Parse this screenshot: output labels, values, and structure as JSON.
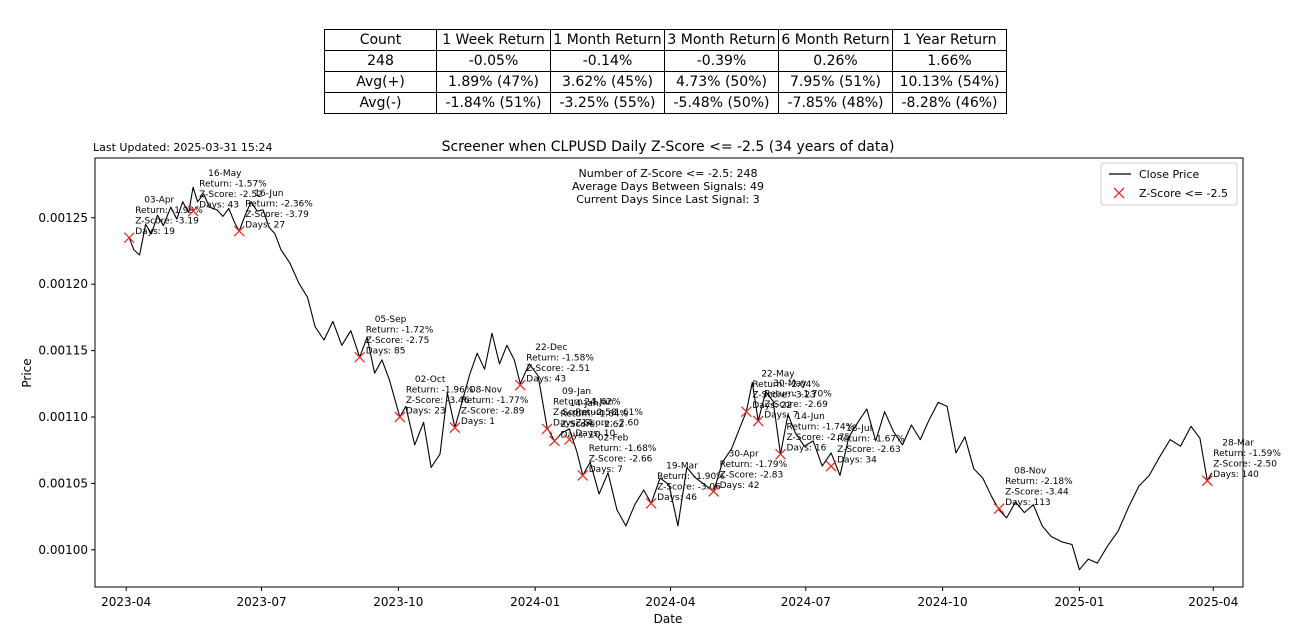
{
  "last_updated": "Last Updated: 2025-03-31 15:24",
  "table": {
    "headers": [
      "Count",
      "1 Week Return",
      "1 Month Return",
      "3 Month Return",
      "6 Month Return",
      "1 Year Return"
    ],
    "rows": [
      [
        "248",
        "-0.05%",
        "-0.14%",
        "-0.39%",
        "0.26%",
        "1.66%"
      ],
      [
        "Avg(+)",
        "1.89% (47%)",
        "3.62% (45%)",
        "4.73% (50%)",
        "7.95% (51%)",
        "10.13% (54%)"
      ],
      [
        "Avg(-)",
        "-1.84% (51%)",
        "-3.25% (55%)",
        "-5.48% (50%)",
        "-7.85% (48%)",
        "-8.28% (46%)"
      ]
    ]
  },
  "chart_data": {
    "type": "line",
    "title": "Screener when CLPUSD Daily Z-Score <= -2.5 (34 years of data)",
    "xlabel": "Date",
    "ylabel": "Price",
    "xlim": [
      "2023-03-11",
      "2025-04-21"
    ],
    "ylim": [
      0.000972,
      0.001295
    ],
    "x_ticks": [
      "2023-04",
      "2023-07",
      "2023-10",
      "2024-01",
      "2024-04",
      "2024-07",
      "2024-10",
      "2025-01",
      "2025-04"
    ],
    "x_tick_dates": [
      "2023-04-01",
      "2023-07-01",
      "2023-10-01",
      "2024-01-01",
      "2024-04-01",
      "2024-07-01",
      "2024-10-01",
      "2025-01-01",
      "2025-04-01"
    ],
    "y_ticks": [
      "0.00100",
      "0.00105",
      "0.00110",
      "0.00115",
      "0.00120",
      "0.00125"
    ],
    "y_tick_values": [
      0.001,
      0.00105,
      0.0011,
      0.00115,
      0.0012,
      0.00125
    ],
    "legend_position": "top-right",
    "legend": [
      {
        "label": "Close Price",
        "color": "#000000",
        "marker": "line"
      },
      {
        "label": "Z-Score <= -2.5",
        "color": "#e8302a",
        "marker": "x"
      }
    ],
    "info_lines": [
      "Number of Z-Score <= -2.5: 248",
      "Average Days Between Signals: 49",
      "Current Days Since Last Signal: 3"
    ],
    "series": [
      {
        "name": "Close Price",
        "color": "#000000",
        "points": [
          [
            "2023-04-03",
            0.001235
          ],
          [
            "2023-04-06",
            0.001226
          ],
          [
            "2023-04-10",
            0.001222
          ],
          [
            "2023-04-14",
            0.001245
          ],
          [
            "2023-04-18",
            0.001238
          ],
          [
            "2023-04-22",
            0.001252
          ],
          [
            "2023-04-26",
            0.001244
          ],
          [
            "2023-05-01",
            0.001258
          ],
          [
            "2023-05-05",
            0.001249
          ],
          [
            "2023-05-09",
            0.001262
          ],
          [
            "2023-05-13",
            0.001254
          ],
          [
            "2023-05-16",
            0.001273
          ],
          [
            "2023-05-19",
            0.001262
          ],
          [
            "2023-05-23",
            0.001268
          ],
          [
            "2023-05-27",
            0.001258
          ],
          [
            "2023-06-01",
            0.001256
          ],
          [
            "2023-06-05",
            0.001251
          ],
          [
            "2023-06-09",
            0.001257
          ],
          [
            "2023-06-13",
            0.001246
          ],
          [
            "2023-06-16",
            0.00124
          ],
          [
            "2023-06-20",
            0.001252
          ],
          [
            "2023-06-24",
            0.001262
          ],
          [
            "2023-06-28",
            0.001255
          ],
          [
            "2023-07-02",
            0.001256
          ],
          [
            "2023-07-06",
            0.001243
          ],
          [
            "2023-07-10",
            0.001238
          ],
          [
            "2023-07-14",
            0.001226
          ],
          [
            "2023-07-20",
            0.001216
          ],
          [
            "2023-07-26",
            0.001201
          ],
          [
            "2023-08-01",
            0.00119
          ],
          [
            "2023-08-06",
            0.001168
          ],
          [
            "2023-08-12",
            0.001158
          ],
          [
            "2023-08-18",
            0.001172
          ],
          [
            "2023-08-24",
            0.001154
          ],
          [
            "2023-08-30",
            0.001165
          ],
          [
            "2023-09-05",
            0.001145
          ],
          [
            "2023-09-10",
            0.00116
          ],
          [
            "2023-09-15",
            0.001133
          ],
          [
            "2023-09-20",
            0.001143
          ],
          [
            "2023-09-25",
            0.001128
          ],
          [
            "2023-10-02",
            0.0011
          ],
          [
            "2023-10-06",
            0.001108
          ],
          [
            "2023-10-12",
            0.001079
          ],
          [
            "2023-10-18",
            0.001096
          ],
          [
            "2023-10-23",
            0.001062
          ],
          [
            "2023-10-29",
            0.001072
          ],
          [
            "2023-11-03",
            0.001118
          ],
          [
            "2023-11-08",
            0.001092
          ],
          [
            "2023-11-13",
            0.001112
          ],
          [
            "2023-11-18",
            0.001132
          ],
          [
            "2023-11-23",
            0.001148
          ],
          [
            "2023-11-28",
            0.001136
          ],
          [
            "2023-12-03",
            0.001163
          ],
          [
            "2023-12-08",
            0.00114
          ],
          [
            "2023-12-13",
            0.001154
          ],
          [
            "2023-12-18",
            0.001143
          ],
          [
            "2023-12-22",
            0.001125
          ],
          [
            "2023-12-28",
            0.00114
          ],
          [
            "2024-01-03",
            0.001131
          ],
          [
            "2024-01-09",
            0.001092
          ],
          [
            "2024-01-14",
            0.001082
          ],
          [
            "2024-01-19",
            0.001088
          ],
          [
            "2024-01-24",
            0.001091
          ],
          [
            "2024-01-29",
            0.001074
          ],
          [
            "2024-02-02",
            0.001056
          ],
          [
            "2024-02-07",
            0.001066
          ],
          [
            "2024-02-13",
            0.001042
          ],
          [
            "2024-02-19",
            0.001058
          ],
          [
            "2024-02-25",
            0.00103
          ],
          [
            "2024-03-02",
            0.001018
          ],
          [
            "2024-03-08",
            0.001034
          ],
          [
            "2024-03-14",
            0.001045
          ],
          [
            "2024-03-19",
            0.001035
          ],
          [
            "2024-03-25",
            0.001054
          ],
          [
            "2024-03-31",
            0.001049
          ],
          [
            "2024-04-06",
            0.001018
          ],
          [
            "2024-04-12",
            0.001062
          ],
          [
            "2024-04-18",
            0.001054
          ],
          [
            "2024-04-24",
            0.001049
          ],
          [
            "2024-04-30",
            0.001044
          ],
          [
            "2024-05-06",
            0.001066
          ],
          [
            "2024-05-12",
            0.001076
          ],
          [
            "2024-05-18",
            0.001093
          ],
          [
            "2024-05-22",
            0.001104
          ],
          [
            "2024-05-26",
            0.001126
          ],
          [
            "2024-05-30",
            0.001097
          ],
          [
            "2024-06-04",
            0.001119
          ],
          [
            "2024-06-09",
            0.001112
          ],
          [
            "2024-06-14",
            0.001072
          ],
          [
            "2024-06-19",
            0.001102
          ],
          [
            "2024-06-24",
            0.001088
          ],
          [
            "2024-06-30",
            0.001078
          ],
          [
            "2024-07-06",
            0.001082
          ],
          [
            "2024-07-12",
            0.001063
          ],
          [
            "2024-07-18",
            0.001073
          ],
          [
            "2024-07-24",
            0.001056
          ],
          [
            "2024-07-30",
            0.001085
          ],
          [
            "2024-08-05",
            0.001096
          ],
          [
            "2024-08-11",
            0.001106
          ],
          [
            "2024-08-17",
            0.001082
          ],
          [
            "2024-08-23",
            0.001104
          ],
          [
            "2024-08-29",
            0.001089
          ],
          [
            "2024-09-04",
            0.001079
          ],
          [
            "2024-09-10",
            0.001094
          ],
          [
            "2024-09-16",
            0.001083
          ],
          [
            "2024-09-22",
            0.001098
          ],
          [
            "2024-09-28",
            0.001111
          ],
          [
            "2024-10-04",
            0.001108
          ],
          [
            "2024-10-10",
            0.001073
          ],
          [
            "2024-10-16",
            0.001085
          ],
          [
            "2024-10-22",
            0.001061
          ],
          [
            "2024-10-28",
            0.001054
          ],
          [
            "2024-11-03",
            0.00104
          ],
          [
            "2024-11-08",
            0.00103
          ],
          [
            "2024-11-13",
            0.001024
          ],
          [
            "2024-11-19",
            0.001036
          ],
          [
            "2024-11-25",
            0.001028
          ],
          [
            "2024-12-01",
            0.001034
          ],
          [
            "2024-12-07",
            0.001018
          ],
          [
            "2024-12-13",
            0.00101
          ],
          [
            "2024-12-20",
            0.001006
          ],
          [
            "2024-12-27",
            0.001004
          ],
          [
            "2025-01-01",
            0.000985
          ],
          [
            "2025-01-07",
            0.000993
          ],
          [
            "2025-01-13",
            0.00099
          ],
          [
            "2025-01-20",
            0.001003
          ],
          [
            "2025-01-27",
            0.001014
          ],
          [
            "2025-02-03",
            0.001032
          ],
          [
            "2025-02-10",
            0.001048
          ],
          [
            "2025-02-17",
            0.001056
          ],
          [
            "2025-02-24",
            0.00107
          ],
          [
            "2025-03-03",
            0.001083
          ],
          [
            "2025-03-10",
            0.001078
          ],
          [
            "2025-03-17",
            0.001093
          ],
          [
            "2025-03-23",
            0.001084
          ],
          [
            "2025-03-28",
            0.001052
          ],
          [
            "2025-03-31",
            0.001058
          ]
        ]
      }
    ],
    "signals": [
      {
        "date": "2023-04-03",
        "price": 0.001235,
        "lines": [
          "03-Apr",
          "Return: -1.99%",
          "Z-Score: -3.19",
          "Days: 19"
        ]
      },
      {
        "date": "2023-05-16",
        "price": 0.001255,
        "lines": [
          "16-May",
          "Return: -1.57%",
          "Z-Score: -2.52",
          "Days: 43"
        ]
      },
      {
        "date": "2023-06-16",
        "price": 0.00124,
        "lines": [
          "16-Jun",
          "Return: -2.36%",
          "Z-Score: -3.79",
          "Days: 27"
        ]
      },
      {
        "date": "2023-09-05",
        "price": 0.001145,
        "lines": [
          "05-Sep",
          "Return: -1.72%",
          "Z-Score: -2.75",
          "Days: 85"
        ]
      },
      {
        "date": "2023-10-02",
        "price": 0.0011,
        "lines": [
          "02-Oct",
          "Return: -1.96%",
          "Z-Score: -3.46",
          "Days: 23"
        ]
      },
      {
        "date": "2023-11-08",
        "price": 0.001092,
        "lines": [
          "08-Nov",
          "Return: -1.77%",
          "Z-Score: -2.89",
          "Days: 1"
        ]
      },
      {
        "date": "2023-12-22",
        "price": 0.001124,
        "lines": [
          "22-Dec",
          "Return: -1.58%",
          "Z-Score: -2.51",
          "Days: 43"
        ]
      },
      {
        "date": "2024-01-09",
        "price": 0.001091,
        "lines": [
          "09-Jan",
          "Return: -1.62%",
          "Z-Score: -2.58",
          "Days: 14"
        ]
      },
      {
        "date": "2024-01-14",
        "price": 0.001082,
        "lines": [
          "14-Jan",
          "Return: -1.64%",
          "Z-Score: -2.62",
          "Days: 10"
        ]
      },
      {
        "date": "2024-01-24",
        "price": 0.001083,
        "lines": [
          "24-Jan",
          "Return: -1.61%",
          "Z-Score: -2.60",
          "Days: 10"
        ]
      },
      {
        "date": "2024-02-02",
        "price": 0.001056,
        "lines": [
          "02-Feb",
          "Return: -1.68%",
          "Z-Score: -2.66",
          "Days: 7"
        ]
      },
      {
        "date": "2024-03-19",
        "price": 0.001035,
        "lines": [
          "19-Mar",
          "Return: -1.90%",
          "Z-Score: -3.06",
          "Days: 46"
        ]
      },
      {
        "date": "2024-04-30",
        "price": 0.001044,
        "lines": [
          "30-Apr",
          "Return: -1.79%",
          "Z-Score: -2.83",
          "Days: 42"
        ]
      },
      {
        "date": "2024-05-22",
        "price": 0.001104,
        "lines": [
          "22-May",
          "Return: -2.04%",
          "Z-Score: -3.23",
          "Days: 22"
        ]
      },
      {
        "date": "2024-05-30",
        "price": 0.001097,
        "lines": [
          "30-May",
          "Return: -1.70%",
          "Z-Score: -2.69",
          "Days: 7"
        ]
      },
      {
        "date": "2024-06-14",
        "price": 0.001072,
        "lines": [
          "14-Jun",
          "Return: -1.74%",
          "Z-Score: -2.75",
          "Days: 16"
        ]
      },
      {
        "date": "2024-07-18",
        "price": 0.001063,
        "lines": [
          "18-Jul",
          "Return: -1.67%",
          "Z-Score: -2.63",
          "Days: 34"
        ]
      },
      {
        "date": "2024-11-08",
        "price": 0.001031,
        "lines": [
          "08-Nov",
          "Return: -2.18%",
          "Z-Score: -3.44",
          "Days: 113"
        ]
      },
      {
        "date": "2025-03-28",
        "price": 0.001052,
        "lines": [
          "28-Mar",
          "Return: -1.59%",
          "Z-Score: -2.50",
          "Days: 140"
        ]
      }
    ]
  }
}
